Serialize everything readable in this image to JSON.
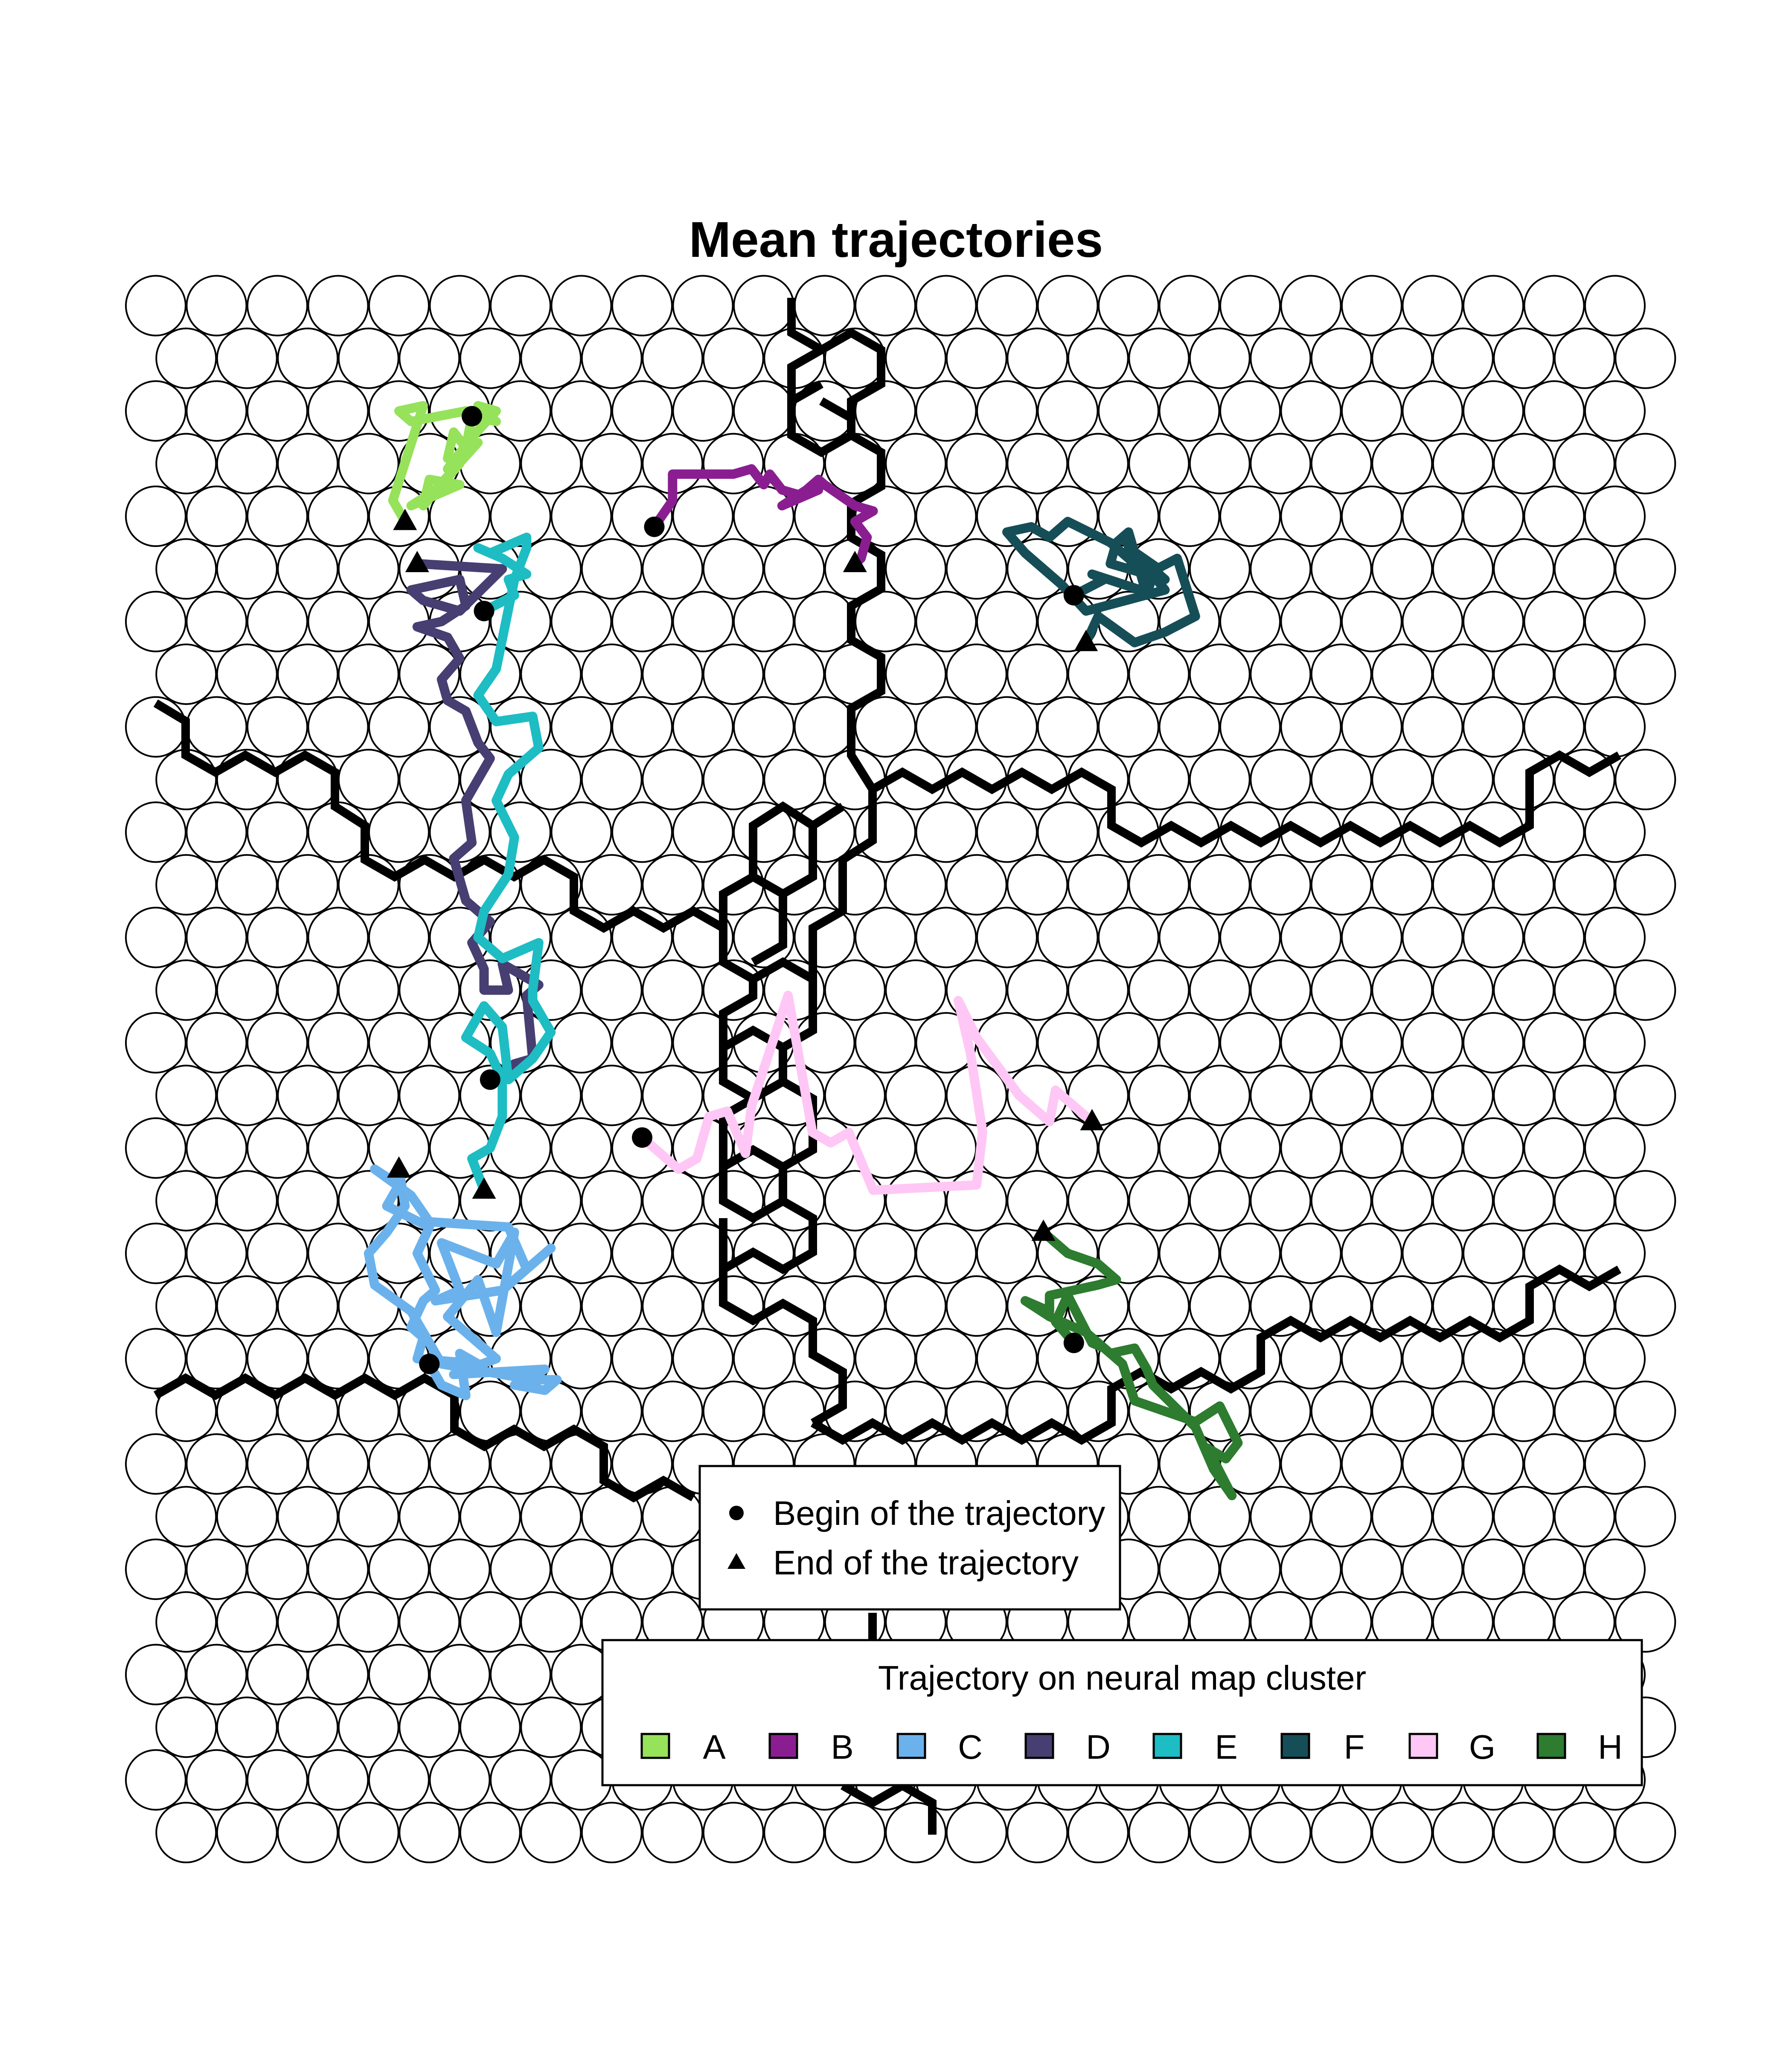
{
  "chart_data": {
    "type": "scatter",
    "title": "Mean trajectories",
    "map": {
      "columns": 25,
      "rows": 30,
      "layout": "hexagonal"
    },
    "markers_legend": {
      "begin_label": "Begin of the trajectory",
      "end_label": "End of the trajectory"
    },
    "cluster_legend": {
      "title": "Trajectory on neural map cluster",
      "entries": [
        {
          "label": "A",
          "color": "#96E25A"
        },
        {
          "label": "B",
          "color": "#8A1E91"
        },
        {
          "label": "C",
          "color": "#6BB2EC"
        },
        {
          "label": "D",
          "color": "#473E72"
        },
        {
          "label": "E",
          "color": "#1DBDC3"
        },
        {
          "label": "F",
          "color": "#164E58"
        },
        {
          "label": "G",
          "color": "#FFC7F5"
        },
        {
          "label": "H",
          "color": "#2D7C2F"
        }
      ]
    },
    "series": [
      {
        "name": "A",
        "color": "#96E25A",
        "points": [
          [
            6.2,
            27.9
          ],
          [
            6.1,
            27.3
          ],
          [
            5.9,
            27.6
          ],
          [
            5.8,
            27.1
          ],
          [
            6.0,
            27.0
          ],
          [
            5.4,
            26.2
          ],
          [
            5.5,
            26.7
          ],
          [
            6.0,
            26.6
          ],
          [
            5.2,
            26.2
          ],
          [
            5.6,
            26.5
          ],
          [
            6.3,
            27.4
          ],
          [
            5.8,
            26.9
          ],
          [
            6.2,
            27.5
          ],
          [
            6.6,
            28.0
          ],
          [
            6.3,
            28.1
          ],
          [
            6.6,
            27.8
          ],
          [
            6.2,
            27.9
          ],
          [
            6.1,
            28.0
          ],
          [
            5.2,
            27.8
          ],
          [
            5.0,
            28.0
          ],
          [
            5.4,
            28.1
          ],
          [
            4.9,
            26.3
          ],
          [
            5.1,
            25.9
          ]
        ]
      },
      {
        "name": "B",
        "color": "#8A1E91",
        "points": [
          [
            9.2,
            25.8
          ],
          [
            9.5,
            26.3
          ],
          [
            9.5,
            26.8
          ],
          [
            10.5,
            26.8
          ],
          [
            10.8,
            26.9
          ],
          [
            11.0,
            26.6
          ],
          [
            11.1,
            26.8
          ],
          [
            11.3,
            26.5
          ],
          [
            11.6,
            26.4
          ],
          [
            11.9,
            26.5
          ],
          [
            11.3,
            26.2
          ],
          [
            11.7,
            26.5
          ],
          [
            11.9,
            26.7
          ],
          [
            12.0,
            26.6
          ],
          [
            12.5,
            26.2
          ],
          [
            12.8,
            26.1
          ],
          [
            12.5,
            25.9
          ],
          [
            12.7,
            25.6
          ],
          [
            12.6,
            25.2
          ],
          [
            12.5,
            25.1
          ]
        ]
      },
      {
        "name": "C",
        "color": "#6BB2EC",
        "points": [
          [
            5.5,
            9.9
          ],
          [
            5.7,
            9.5
          ],
          [
            6.1,
            9.3
          ],
          [
            6.0,
            10.1
          ],
          [
            6.3,
            9.9
          ],
          [
            5.3,
            10.0
          ],
          [
            5.4,
            10.4
          ],
          [
            5.2,
            10.6
          ],
          [
            5.4,
            11.1
          ],
          [
            5.6,
            11.3
          ],
          [
            5.3,
            12.0
          ],
          [
            5.5,
            12.5
          ],
          [
            4.8,
            12.9
          ],
          [
            5.0,
            13.3
          ],
          [
            4.6,
            13.6
          ],
          [
            5.2,
            13.1
          ],
          [
            5.5,
            12.6
          ],
          [
            6.8,
            12.5
          ],
          [
            7.1,
            11.7
          ],
          [
            7.5,
            12.1
          ],
          [
            6.7,
            11.3
          ],
          [
            5.6,
            11.1
          ],
          [
            6.0,
            11.3
          ],
          [
            5.7,
            12.2
          ],
          [
            6.6,
            11.8
          ],
          [
            6.9,
            12.4
          ],
          [
            6.6,
            10.5
          ],
          [
            6.3,
            11.5
          ],
          [
            5.8,
            10.8
          ],
          [
            6.6,
            10.0
          ],
          [
            5.9,
            9.7
          ],
          [
            7.4,
            9.8
          ],
          [
            6.9,
            9.5
          ],
          [
            7.4,
            9.4
          ],
          [
            7.6,
            9.6
          ],
          [
            7.2,
            9.6
          ],
          [
            5.7,
            9.9
          ],
          [
            5.2,
            10.9
          ],
          [
            4.6,
            11.4
          ],
          [
            4.5,
            12.0
          ],
          [
            4.8,
            12.4
          ],
          [
            5.1,
            12.9
          ],
          [
            5.0,
            13.6
          ]
        ]
      },
      {
        "name": "D",
        "color": "#473E72",
        "points": [
          [
            6.5,
            15.3
          ],
          [
            6.9,
            15.6
          ],
          [
            7.2,
            15.7
          ],
          [
            7.1,
            16.9
          ],
          [
            7.3,
            17.1
          ],
          [
            6.7,
            17.5
          ],
          [
            6.8,
            17.0
          ],
          [
            6.4,
            17.0
          ],
          [
            6.4,
            17.4
          ],
          [
            6.2,
            17.9
          ],
          [
            6.5,
            18.3
          ],
          [
            6.1,
            18.7
          ],
          [
            5.9,
            19.5
          ],
          [
            6.2,
            19.8
          ],
          [
            6.1,
            20.6
          ],
          [
            6.5,
            21.4
          ],
          [
            6.3,
            21.7
          ],
          [
            6.1,
            22.3
          ],
          [
            5.8,
            22.5
          ],
          [
            5.7,
            22.9
          ],
          [
            6.0,
            23.3
          ],
          [
            5.8,
            23.7
          ],
          [
            5.3,
            23.9
          ],
          [
            5.7,
            24.0
          ],
          [
            6.1,
            24.3
          ],
          [
            6.0,
            24.8
          ],
          [
            5.2,
            24.6
          ],
          [
            5.4,
            24.4
          ],
          [
            6.0,
            24.2
          ],
          [
            6.7,
            25.0
          ],
          [
            5.3,
            25.1
          ]
        ]
      },
      {
        "name": "E",
        "color": "#1DBDC3",
        "points": [
          [
            6.4,
            24.2
          ],
          [
            6.9,
            24.5
          ],
          [
            6.8,
            24.8
          ],
          [
            7.1,
            24.9
          ],
          [
            6.7,
            25.2
          ],
          [
            6.3,
            25.4
          ],
          [
            6.5,
            25.3
          ],
          [
            7.1,
            25.6
          ],
          [
            7.1,
            25.4
          ],
          [
            6.9,
            24.8
          ],
          [
            6.6,
            23.1
          ],
          [
            6.3,
            22.6
          ],
          [
            6.6,
            22.1
          ],
          [
            7.2,
            22.2
          ],
          [
            7.3,
            21.6
          ],
          [
            6.8,
            21.1
          ],
          [
            6.6,
            20.6
          ],
          [
            6.9,
            19.9
          ],
          [
            6.8,
            19.2
          ],
          [
            6.4,
            18.5
          ],
          [
            6.3,
            18.0
          ],
          [
            6.7,
            17.6
          ],
          [
            7.3,
            17.9
          ],
          [
            7.2,
            17.0
          ],
          [
            7.2,
            16.8
          ],
          [
            7.5,
            16.2
          ],
          [
            7.2,
            15.7
          ],
          [
            6.8,
            15.3
          ],
          [
            6.7,
            16.3
          ],
          [
            6.4,
            16.7
          ],
          [
            6.1,
            16.1
          ],
          [
            6.5,
            15.8
          ],
          [
            6.7,
            15.3
          ],
          [
            6.7,
            14.6
          ],
          [
            6.5,
            14.0
          ],
          [
            6.2,
            13.8
          ],
          [
            6.4,
            13.2
          ]
        ]
      },
      {
        "name": "F",
        "color": "#164E58",
        "points": [
          [
            16.1,
            24.5
          ],
          [
            16.6,
            24.8
          ],
          [
            16.4,
            24.9
          ],
          [
            17.2,
            24.6
          ],
          [
            17.5,
            25.0
          ],
          [
            17.0,
            25.4
          ],
          [
            17.6,
            24.8
          ],
          [
            16.7,
            25.1
          ],
          [
            16.8,
            25.5
          ],
          [
            17.0,
            25.7
          ],
          [
            17.3,
            24.5
          ],
          [
            17.4,
            24.9
          ],
          [
            16.9,
            25.6
          ],
          [
            17.6,
            24.6
          ],
          [
            16.3,
            24.2
          ],
          [
            15.9,
            24.7
          ],
          [
            15.3,
            25.3
          ],
          [
            15.0,
            25.7
          ],
          [
            15.4,
            25.8
          ],
          [
            15.7,
            25.6
          ],
          [
            16.0,
            25.9
          ],
          [
            16.7,
            25.5
          ],
          [
            17.3,
            24.9
          ],
          [
            17.8,
            25.2
          ],
          [
            18.1,
            24.1
          ],
          [
            17.6,
            23.8
          ],
          [
            17.1,
            23.6
          ],
          [
            16.5,
            24.1
          ],
          [
            16.3,
            23.6
          ]
        ]
      },
      {
        "name": "G",
        "color": "#FFC7F5",
        "points": [
          [
            9.0,
            14.2
          ],
          [
            9.4,
            13.8
          ],
          [
            9.6,
            13.6
          ],
          [
            9.9,
            13.8
          ],
          [
            10.1,
            14.6
          ],
          [
            10.4,
            14.7
          ],
          [
            10.7,
            13.9
          ],
          [
            10.8,
            14.8
          ],
          [
            11.4,
            16.9
          ],
          [
            11.6,
            15.6
          ],
          [
            11.8,
            14.3
          ],
          [
            12.1,
            14.1
          ],
          [
            12.4,
            14.3
          ],
          [
            12.8,
            13.2
          ],
          [
            14.5,
            13.3
          ],
          [
            14.6,
            14.3
          ],
          [
            14.4,
            15.8
          ],
          [
            14.2,
            16.8
          ],
          [
            14.5,
            16.1
          ],
          [
            15.2,
            15.0
          ],
          [
            15.7,
            14.5
          ],
          [
            15.8,
            15.1
          ],
          [
            16.4,
            14.5
          ]
        ]
      },
      {
        "name": "H",
        "color": "#2D7C2F",
        "points": [
          [
            16.1,
            10.3
          ],
          [
            15.8,
            10.7
          ],
          [
            16.0,
            11.2
          ],
          [
            16.4,
            10.3
          ],
          [
            16.6,
            10.2
          ],
          [
            16.9,
            9.9
          ],
          [
            17.1,
            9.2
          ],
          [
            18.1,
            8.8
          ],
          [
            18.5,
            9.1
          ],
          [
            18.8,
            8.4
          ],
          [
            18.6,
            8.1
          ],
          [
            18.3,
            8.3
          ],
          [
            18.7,
            7.4
          ],
          [
            18.4,
            7.9
          ],
          [
            18.1,
            8.7
          ],
          [
            17.4,
            9.5
          ],
          [
            17.3,
            9.8
          ],
          [
            17.1,
            10.2
          ],
          [
            16.7,
            10.1
          ],
          [
            16.3,
            10.5
          ],
          [
            15.7,
            10.8
          ],
          [
            15.3,
            11.1
          ],
          [
            15.7,
            10.9
          ],
          [
            15.7,
            11.2
          ],
          [
            16.5,
            11.4
          ],
          [
            16.8,
            11.5
          ],
          [
            16.5,
            11.8
          ],
          [
            16.0,
            12.0
          ],
          [
            15.6,
            12.4
          ]
        ]
      }
    ]
  }
}
